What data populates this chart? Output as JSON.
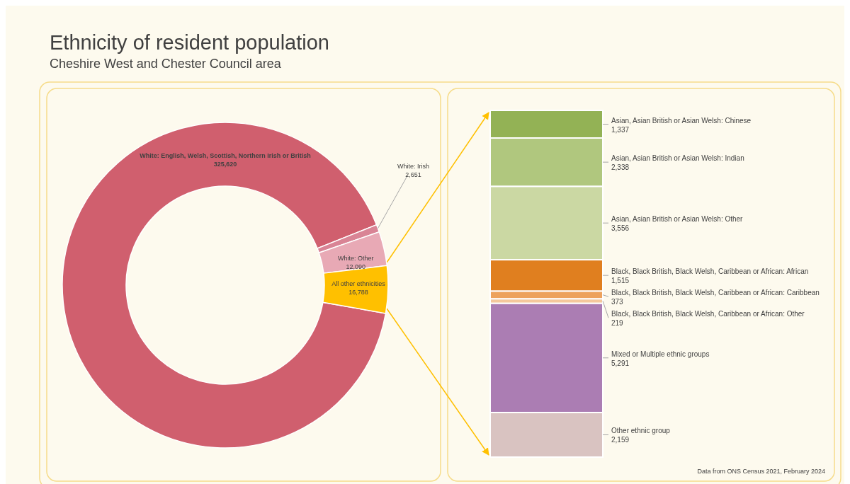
{
  "chart_data": [
    {
      "type": "donut",
      "title": "Ethnicity of resident population",
      "subtitle": "Cheshire West and Chester Council area",
      "categories": [
        "White: English, Welsh, Scottish, Northern Irish or British",
        "White: Irish",
        "White: Other",
        "All other ethnicities"
      ],
      "values": [
        325620,
        2651,
        12090,
        16788
      ],
      "colors": [
        "#d05f6e",
        "#d98495",
        "#e8a9b5",
        "#ffc000"
      ],
      "value_labels": [
        "325,620",
        "2,651",
        "12,090",
        "16,788"
      ]
    },
    {
      "type": "bar",
      "stacked": true,
      "categories": [
        null
      ],
      "annotations": [
        "Data from ONS Census 2021, February 2024"
      ],
      "series": [
        {
          "name": "Other ethnic group",
          "color": "#d9c3c1",
          "values": [
            2159
          ],
          "value_labels": [
            "2,159"
          ]
        },
        {
          "name": "Mixed or Multiple ethnic groups",
          "color": "#ab7db3",
          "values": [
            5291
          ],
          "value_labels": [
            "5,291"
          ]
        },
        {
          "name": "Black, Black British, Black Welsh, Caribbean or African: Other",
          "color": "#f4c89c",
          "values": [
            219
          ],
          "value_labels": [
            "219"
          ]
        },
        {
          "name": "Black, Black British, Black Welsh, Caribbean or African: Caribbean",
          "color": "#eda25c",
          "values": [
            373
          ],
          "value_labels": [
            "373"
          ]
        },
        {
          "name": "Black, Black British, Black Welsh, Caribbean or African: African",
          "color": "#e07f1f",
          "values": [
            1515
          ],
          "value_labels": [
            "1,515"
          ]
        },
        {
          "name": "Asian, Asian British or Asian Welsh: Other",
          "color": "#cbd8a3",
          "values": [
            3556
          ],
          "value_labels": [
            "3,556"
          ]
        },
        {
          "name": "Asian, Asian British or Asian Welsh: Indian",
          "color": "#b0c77e",
          "values": [
            2338
          ],
          "value_labels": [
            "2,338"
          ]
        },
        {
          "name": "Asian, Asian British or Asian Welsh: Chinese",
          "color": "#93b255",
          "values": [
            1337
          ],
          "value_labels": [
            "1,337"
          ]
        }
      ]
    }
  ]
}
